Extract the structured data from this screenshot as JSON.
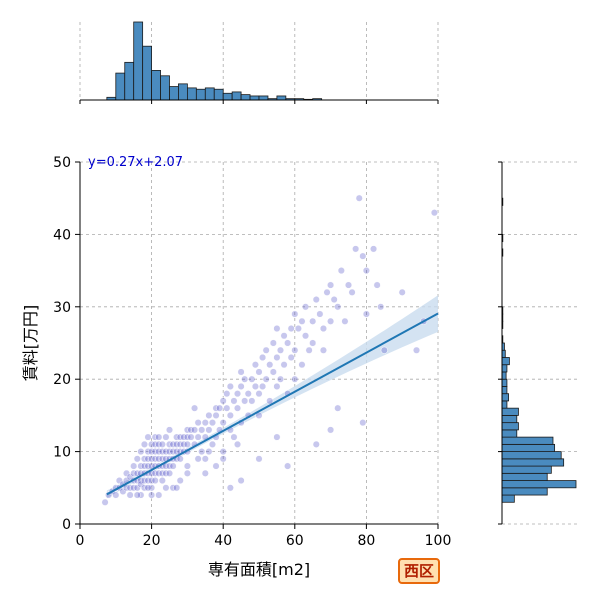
{
  "chart_data": {
    "type": "scatter",
    "xlabel": "専有面積[m2]",
    "ylabel": "賃料[万円]",
    "xlim": [
      0,
      100
    ],
    "ylim": [
      0,
      50
    ],
    "xticks": [
      "0",
      "20",
      "40",
      "60",
      "80",
      "100"
    ],
    "yticks": [
      "0",
      "10",
      "20",
      "30",
      "40",
      "50"
    ],
    "grid": true,
    "annotation": "y=0.27x+2.07",
    "badge": "西区",
    "regression": {
      "slope": 0.27,
      "intercept": 2.07,
      "x_range": [
        7.5,
        100
      ]
    },
    "colors": {
      "points": "#5050c8",
      "line": "#1f77b4",
      "bars": "#4a8bbf",
      "band": "#c9dcef",
      "annotation": "#0000cc"
    },
    "x_hist_bins": {
      "bin_width": 2.5,
      "start": 7.5,
      "counts": [
        2,
        20,
        28,
        58,
        40,
        22,
        18,
        10,
        12,
        9,
        8,
        9,
        8,
        5,
        6,
        4,
        3,
        3,
        1,
        3,
        1,
        1,
        0.5,
        1
      ]
    },
    "y_hist_bins": {
      "bin_width": 1,
      "start": 3,
      "counts": [
        15,
        55,
        90,
        55,
        60,
        75,
        72,
        64,
        62,
        18,
        20,
        18,
        20,
        6,
        8,
        6,
        6,
        5,
        6,
        9,
        4,
        3,
        1,
        0,
        1,
        1,
        1,
        0,
        0,
        0,
        0,
        0,
        0,
        0,
        1,
        0,
        1,
        0,
        0,
        0,
        0,
        1
      ]
    },
    "points": [
      [
        7,
        3
      ],
      [
        8,
        4
      ],
      [
        9,
        4.5
      ],
      [
        10,
        5
      ],
      [
        10,
        4
      ],
      [
        11,
        6
      ],
      [
        11,
        5
      ],
      [
        12,
        5.5
      ],
      [
        12,
        4.5
      ],
      [
        13,
        6
      ],
      [
        13,
        5
      ],
      [
        13,
        7
      ],
      [
        14,
        5
      ],
      [
        14,
        6.5
      ],
      [
        14,
        4
      ],
      [
        15,
        6
      ],
      [
        15,
        7
      ],
      [
        15,
        5
      ],
      [
        15,
        8
      ],
      [
        16,
        6
      ],
      [
        16,
        7
      ],
      [
        16,
        5
      ],
      [
        16,
        9
      ],
      [
        17,
        7
      ],
      [
        17,
        6
      ],
      [
        17,
        8
      ],
      [
        17,
        5.5
      ],
      [
        17,
        10
      ],
      [
        18,
        7
      ],
      [
        18,
        8
      ],
      [
        18,
        6
      ],
      [
        18,
        9
      ],
      [
        18,
        5
      ],
      [
        18,
        11
      ],
      [
        19,
        8
      ],
      [
        19,
        7
      ],
      [
        19,
        9
      ],
      [
        19,
        6
      ],
      [
        19,
        10
      ],
      [
        19,
        12
      ],
      [
        20,
        8
      ],
      [
        20,
        9
      ],
      [
        20,
        7
      ],
      [
        20,
        10
      ],
      [
        20,
        6
      ],
      [
        20,
        11
      ],
      [
        20,
        5
      ],
      [
        21,
        8
      ],
      [
        21,
        9
      ],
      [
        21,
        10
      ],
      [
        21,
        7
      ],
      [
        21,
        11
      ],
      [
        21,
        12
      ],
      [
        21,
        6
      ],
      [
        22,
        9
      ],
      [
        22,
        8
      ],
      [
        22,
        10
      ],
      [
        22,
        7
      ],
      [
        22,
        11
      ],
      [
        22,
        12
      ],
      [
        23,
        9
      ],
      [
        23,
        8
      ],
      [
        23,
        10
      ],
      [
        23,
        7
      ],
      [
        23,
        6
      ],
      [
        23,
        11
      ],
      [
        24,
        9
      ],
      [
        24,
        10
      ],
      [
        24,
        8
      ],
      [
        24,
        12
      ],
      [
        24,
        7
      ],
      [
        25,
        10
      ],
      [
        25,
        9
      ],
      [
        25,
        11
      ],
      [
        25,
        8
      ],
      [
        25,
        7
      ],
      [
        25,
        13
      ],
      [
        26,
        10
      ],
      [
        26,
        11
      ],
      [
        26,
        9
      ],
      [
        26,
        8
      ],
      [
        27,
        10
      ],
      [
        27,
        12
      ],
      [
        27,
        9
      ],
      [
        27,
        11
      ],
      [
        28,
        11
      ],
      [
        28,
        10
      ],
      [
        28,
        12
      ],
      [
        28,
        9
      ],
      [
        29,
        12
      ],
      [
        29,
        11
      ],
      [
        29,
        10
      ],
      [
        30,
        12
      ],
      [
        30,
        11
      ],
      [
        30,
        13
      ],
      [
        30,
        10
      ],
      [
        30,
        8
      ],
      [
        31,
        12
      ],
      [
        31,
        13
      ],
      [
        32,
        13
      ],
      [
        32,
        11
      ],
      [
        32,
        16
      ],
      [
        33,
        12
      ],
      [
        33,
        14
      ],
      [
        34,
        13
      ],
      [
        34,
        10
      ],
      [
        35,
        14
      ],
      [
        35,
        12
      ],
      [
        35,
        9
      ],
      [
        36,
        15
      ],
      [
        36,
        13
      ],
      [
        37,
        14
      ],
      [
        37,
        11
      ],
      [
        38,
        15
      ],
      [
        38,
        16
      ],
      [
        38,
        12
      ],
      [
        39,
        16
      ],
      [
        39,
        13
      ],
      [
        40,
        17
      ],
      [
        40,
        14
      ],
      [
        40,
        10
      ],
      [
        41,
        16
      ],
      [
        41,
        18
      ],
      [
        42,
        15
      ],
      [
        42,
        19
      ],
      [
        42,
        13
      ],
      [
        43,
        17
      ],
      [
        43,
        12
      ],
      [
        44,
        18
      ],
      [
        44,
        16
      ],
      [
        45,
        19
      ],
      [
        45,
        14
      ],
      [
        45,
        21
      ],
      [
        46,
        17
      ],
      [
        46,
        20
      ],
      [
        47,
        18
      ],
      [
        47,
        15
      ],
      [
        48,
        20
      ],
      [
        48,
        17
      ],
      [
        49,
        19
      ],
      [
        49,
        22
      ],
      [
        50,
        21
      ],
      [
        50,
        18
      ],
      [
        50,
        15
      ],
      [
        51,
        23
      ],
      [
        51,
        19
      ],
      [
        52,
        24
      ],
      [
        52,
        20
      ],
      [
        53,
        22
      ],
      [
        53,
        17
      ],
      [
        54,
        25
      ],
      [
        54,
        21
      ],
      [
        55,
        23
      ],
      [
        55,
        19
      ],
      [
        55,
        27
      ],
      [
        56,
        24
      ],
      [
        56,
        20
      ],
      [
        57,
        26
      ],
      [
        57,
        22
      ],
      [
        58,
        25
      ],
      [
        58,
        18
      ],
      [
        59,
        27
      ],
      [
        59,
        23
      ],
      [
        60,
        29
      ],
      [
        60,
        24
      ],
      [
        60,
        20
      ],
      [
        61,
        27
      ],
      [
        62,
        28
      ],
      [
        62,
        22
      ],
      [
        63,
        26
      ],
      [
        63,
        30
      ],
      [
        64,
        24
      ],
      [
        65,
        28
      ],
      [
        65,
        25
      ],
      [
        66,
        31
      ],
      [
        67,
        29
      ],
      [
        68,
        27
      ],
      [
        68,
        24
      ],
      [
        69,
        32
      ],
      [
        70,
        33
      ],
      [
        70,
        28
      ],
      [
        71,
        31
      ],
      [
        72,
        30
      ],
      [
        73,
        35
      ],
      [
        74,
        28
      ],
      [
        75,
        33
      ],
      [
        76,
        32
      ],
      [
        77,
        38
      ],
      [
        78,
        45
      ],
      [
        79,
        37
      ],
      [
        80,
        35
      ],
      [
        80,
        29
      ],
      [
        82,
        38
      ],
      [
        83,
        33
      ],
      [
        84,
        30
      ],
      [
        85,
        24
      ],
      [
        90,
        32
      ],
      [
        94,
        24
      ],
      [
        96,
        28
      ],
      [
        99,
        43
      ],
      [
        66,
        11
      ],
      [
        70,
        13
      ],
      [
        79,
        14
      ],
      [
        72,
        16
      ],
      [
        40,
        9
      ],
      [
        45,
        6
      ],
      [
        58,
        8
      ],
      [
        42,
        5
      ],
      [
        35,
        7
      ],
      [
        38,
        8
      ],
      [
        50,
        9
      ],
      [
        55,
        12
      ],
      [
        28,
        6
      ],
      [
        30,
        7
      ],
      [
        26,
        5
      ],
      [
        24,
        5
      ],
      [
        22,
        4
      ],
      [
        20,
        4
      ],
      [
        19,
        5
      ],
      [
        17,
        4
      ],
      [
        16,
        4
      ],
      [
        27,
        5
      ],
      [
        33,
        9
      ],
      [
        36,
        10
      ],
      [
        44,
        11
      ]
    ]
  }
}
